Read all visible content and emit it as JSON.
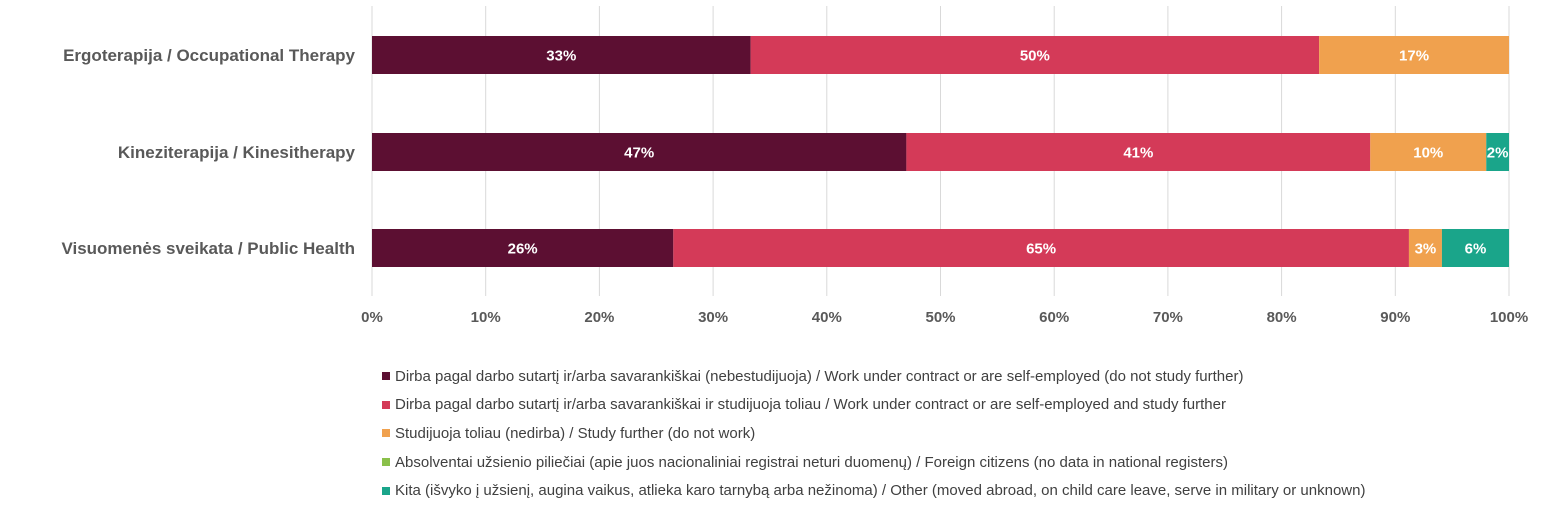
{
  "chart_data": {
    "type": "bar",
    "orientation": "horizontal",
    "stacked": "percent",
    "categories": [
      "Ergoterapija / Occupational Therapy",
      "Kineziterapija / Kinesitherapy",
      "Visuomenės sveikata / Public Health"
    ],
    "series": [
      {
        "name": "Dirba pagal darbo sutartį ir/arba savarankiškai (nebestudijuoja) / Work under contract or are self-employed (do not study further)",
        "color": "#5c0f32",
        "values": [
          33.3,
          47.0,
          26.5
        ],
        "labels": [
          "33%",
          "47%",
          "26%"
        ]
      },
      {
        "name": "Dirba pagal darbo sutartį ir/arba savarankiškai  ir studijuoja toliau / Work under contract or are self-employed and study further",
        "color": "#d43a58",
        "values": [
          50.0,
          40.8,
          64.7
        ],
        "labels": [
          "50%",
          "41%",
          "65%"
        ]
      },
      {
        "name": "Studijuoja toliau (nedirba) / Study further (do not work)",
        "color": "#f0a14e",
        "values": [
          16.7,
          10.2,
          2.9
        ],
        "labels": [
          "17%",
          "10%",
          "3%"
        ]
      },
      {
        "name": "Absolventai užsienio piliečiai (apie juos nacionaliniai registrai neturi duomenų) / Foreign citizens (no data in national registers)",
        "color": "#8ac04a",
        "values": [
          0,
          0,
          0
        ],
        "labels": [
          "",
          "",
          ""
        ]
      },
      {
        "name": "Kita (išvyko į užsienį, augina vaikus, atlieka karo tarnybą arba nežinoma) / Other (moved abroad, on child care leave, serve in military or unknown)",
        "color": "#1aa58a",
        "values": [
          0,
          2.0,
          5.9
        ],
        "labels": [
          "",
          "2%",
          "6%"
        ]
      }
    ],
    "x_ticks": [
      "0%",
      "10%",
      "20%",
      "30%",
      "40%",
      "50%",
      "60%",
      "70%",
      "80%",
      "90%",
      "100%"
    ],
    "xlim": [
      0,
      100
    ],
    "grid": true,
    "legend_position": "bottom"
  }
}
